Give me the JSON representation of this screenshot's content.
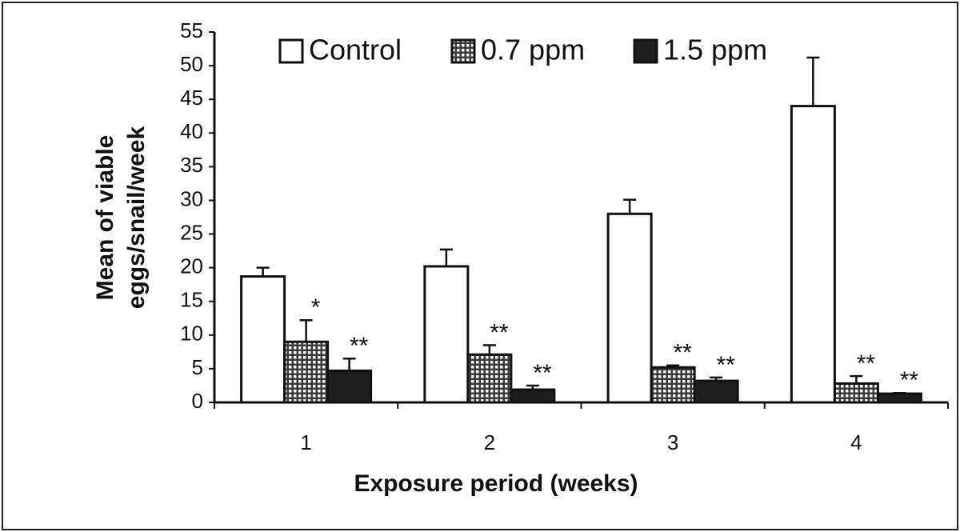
{
  "chart_data": {
    "type": "bar",
    "ylabel": [
      "Mean of viable",
      "eggs/snail/week"
    ],
    "xlabel": "Exposure period (weeks)",
    "categories": [
      "1",
      "2",
      "3",
      "4"
    ],
    "series": [
      {
        "name": "Control",
        "color": "#ffffff",
        "values": [
          18.7,
          20.2,
          28,
          44
        ],
        "errors": [
          1.3,
          2.5,
          2.1,
          7.2
        ]
      },
      {
        "name": "0.7 ppm",
        "color": "#3a3a3a",
        "pattern": "dots",
        "values": [
          9,
          7.1,
          5.2,
          2.8
        ],
        "errors": [
          3.2,
          1.4,
          0.3,
          1.1
        ],
        "annotations": [
          "*",
          "**",
          "**",
          "**"
        ]
      },
      {
        "name": "1.5 ppm",
        "color": "#1e1e1e",
        "values": [
          4.7,
          1.9,
          3.2,
          1.3
        ],
        "errors": [
          1.8,
          0.6,
          0.5,
          0.1
        ],
        "annotations": [
          "**",
          "**",
          "**",
          "**"
        ]
      }
    ],
    "ylim": [
      0,
      55
    ],
    "yticks": [
      0,
      5,
      10,
      15,
      20,
      25,
      30,
      35,
      40,
      45,
      50,
      55
    ]
  }
}
